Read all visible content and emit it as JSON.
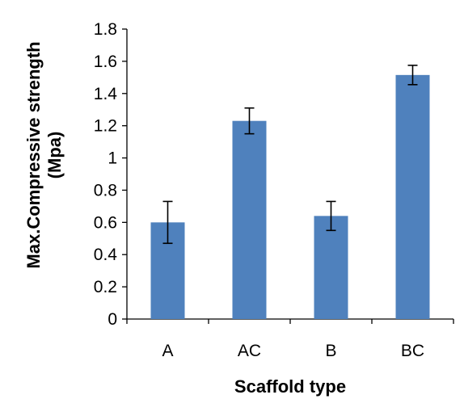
{
  "chart_data": {
    "type": "bar",
    "categories": [
      "A",
      "AC",
      "B",
      "BC"
    ],
    "values": [
      0.6,
      1.23,
      0.64,
      1.515
    ],
    "error": [
      0.13,
      0.08,
      0.09,
      0.06
    ],
    "xlabel": "Scaffold type",
    "ylabel_line1": "Max.Compressive strength",
    "ylabel_line2": "(Mpa)",
    "ylim": [
      0,
      1.8
    ],
    "yticks": [
      "0",
      "0.2",
      "0.4",
      "0.6",
      "0.8",
      "1",
      "1.2",
      "1.4",
      "1.6",
      "1.8"
    ],
    "bar_color": "#4f81bd",
    "grid": false,
    "legend": "none"
  }
}
